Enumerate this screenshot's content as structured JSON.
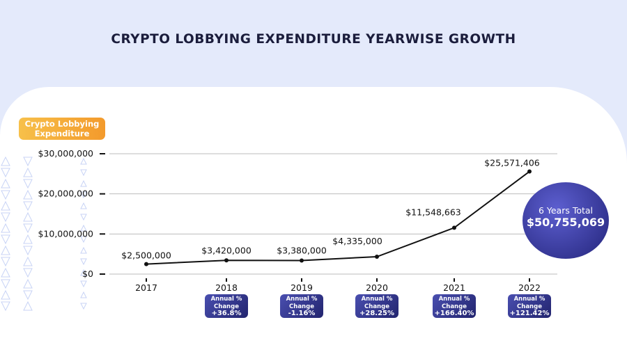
{
  "chart_data": {
    "type": "line",
    "title": "CRYPTO LOBBYING EXPENDITURE YEARWISE GROWTH",
    "ylabel": "Crypto Lobbying Expenditure",
    "categories": [
      "2017",
      "2018",
      "2019",
      "2020",
      "2021",
      "2022"
    ],
    "values": [
      2500000,
      3420000,
      3380000,
      4335000,
      11548663,
      25571406
    ],
    "data_labels": [
      "$2,500,000",
      "$3,420,000",
      "$3,380,000",
      "$4,335,000",
      "$11,548,663",
      "$25,571,406"
    ],
    "ylim": [
      0,
      30000000
    ],
    "yticks": [
      {
        "v": 0,
        "label": "$0"
      },
      {
        "v": 10000000,
        "label": "$10,000,000"
      },
      {
        "v": 20000000,
        "label": "$20,000,000"
      },
      {
        "v": 30000000,
        "label": "$30,000,000"
      }
    ],
    "grid": true,
    "annual_change": {
      "label": "Annual % Change",
      "values": [
        null,
        "+36.8%",
        "-1.16%",
        "+28.25%",
        "+166.40%",
        "+121.42%"
      ]
    },
    "total": {
      "label": "6 Years Total",
      "value": "$50,755,069"
    },
    "colors": {
      "line": "#111111",
      "badge": "#2e3190",
      "label": "#f5a93a",
      "background": "#e4eafb"
    }
  }
}
